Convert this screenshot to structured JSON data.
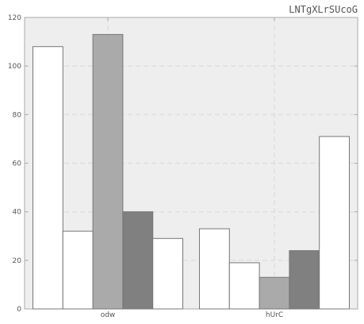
{
  "chart_data": {
    "type": "bar",
    "title": "LNTgXLrSUcoG",
    "categories": [
      "odw",
      "hUrC"
    ],
    "series": [
      {
        "values": [
          108,
          33
        ],
        "color": "#ffffff"
      },
      {
        "values": [
          32,
          19
        ],
        "color": "#ffffff"
      },
      {
        "values": [
          113,
          13
        ],
        "color": "#aaaaaa"
      },
      {
        "values": [
          40,
          24
        ],
        "color": "#808080"
      },
      {
        "values": [
          29,
          71
        ],
        "color": "#ffffff"
      }
    ],
    "ylim": [
      0,
      120
    ],
    "yticks": [
      0,
      20,
      40,
      60,
      80,
      100,
      120
    ],
    "grid": true,
    "xlabel": "",
    "ylabel": ""
  },
  "colors": {
    "plot_background": "#eeeeee",
    "grid": "#dddddd",
    "bar_edge": "#777777",
    "axis": "#aaaaaa"
  }
}
